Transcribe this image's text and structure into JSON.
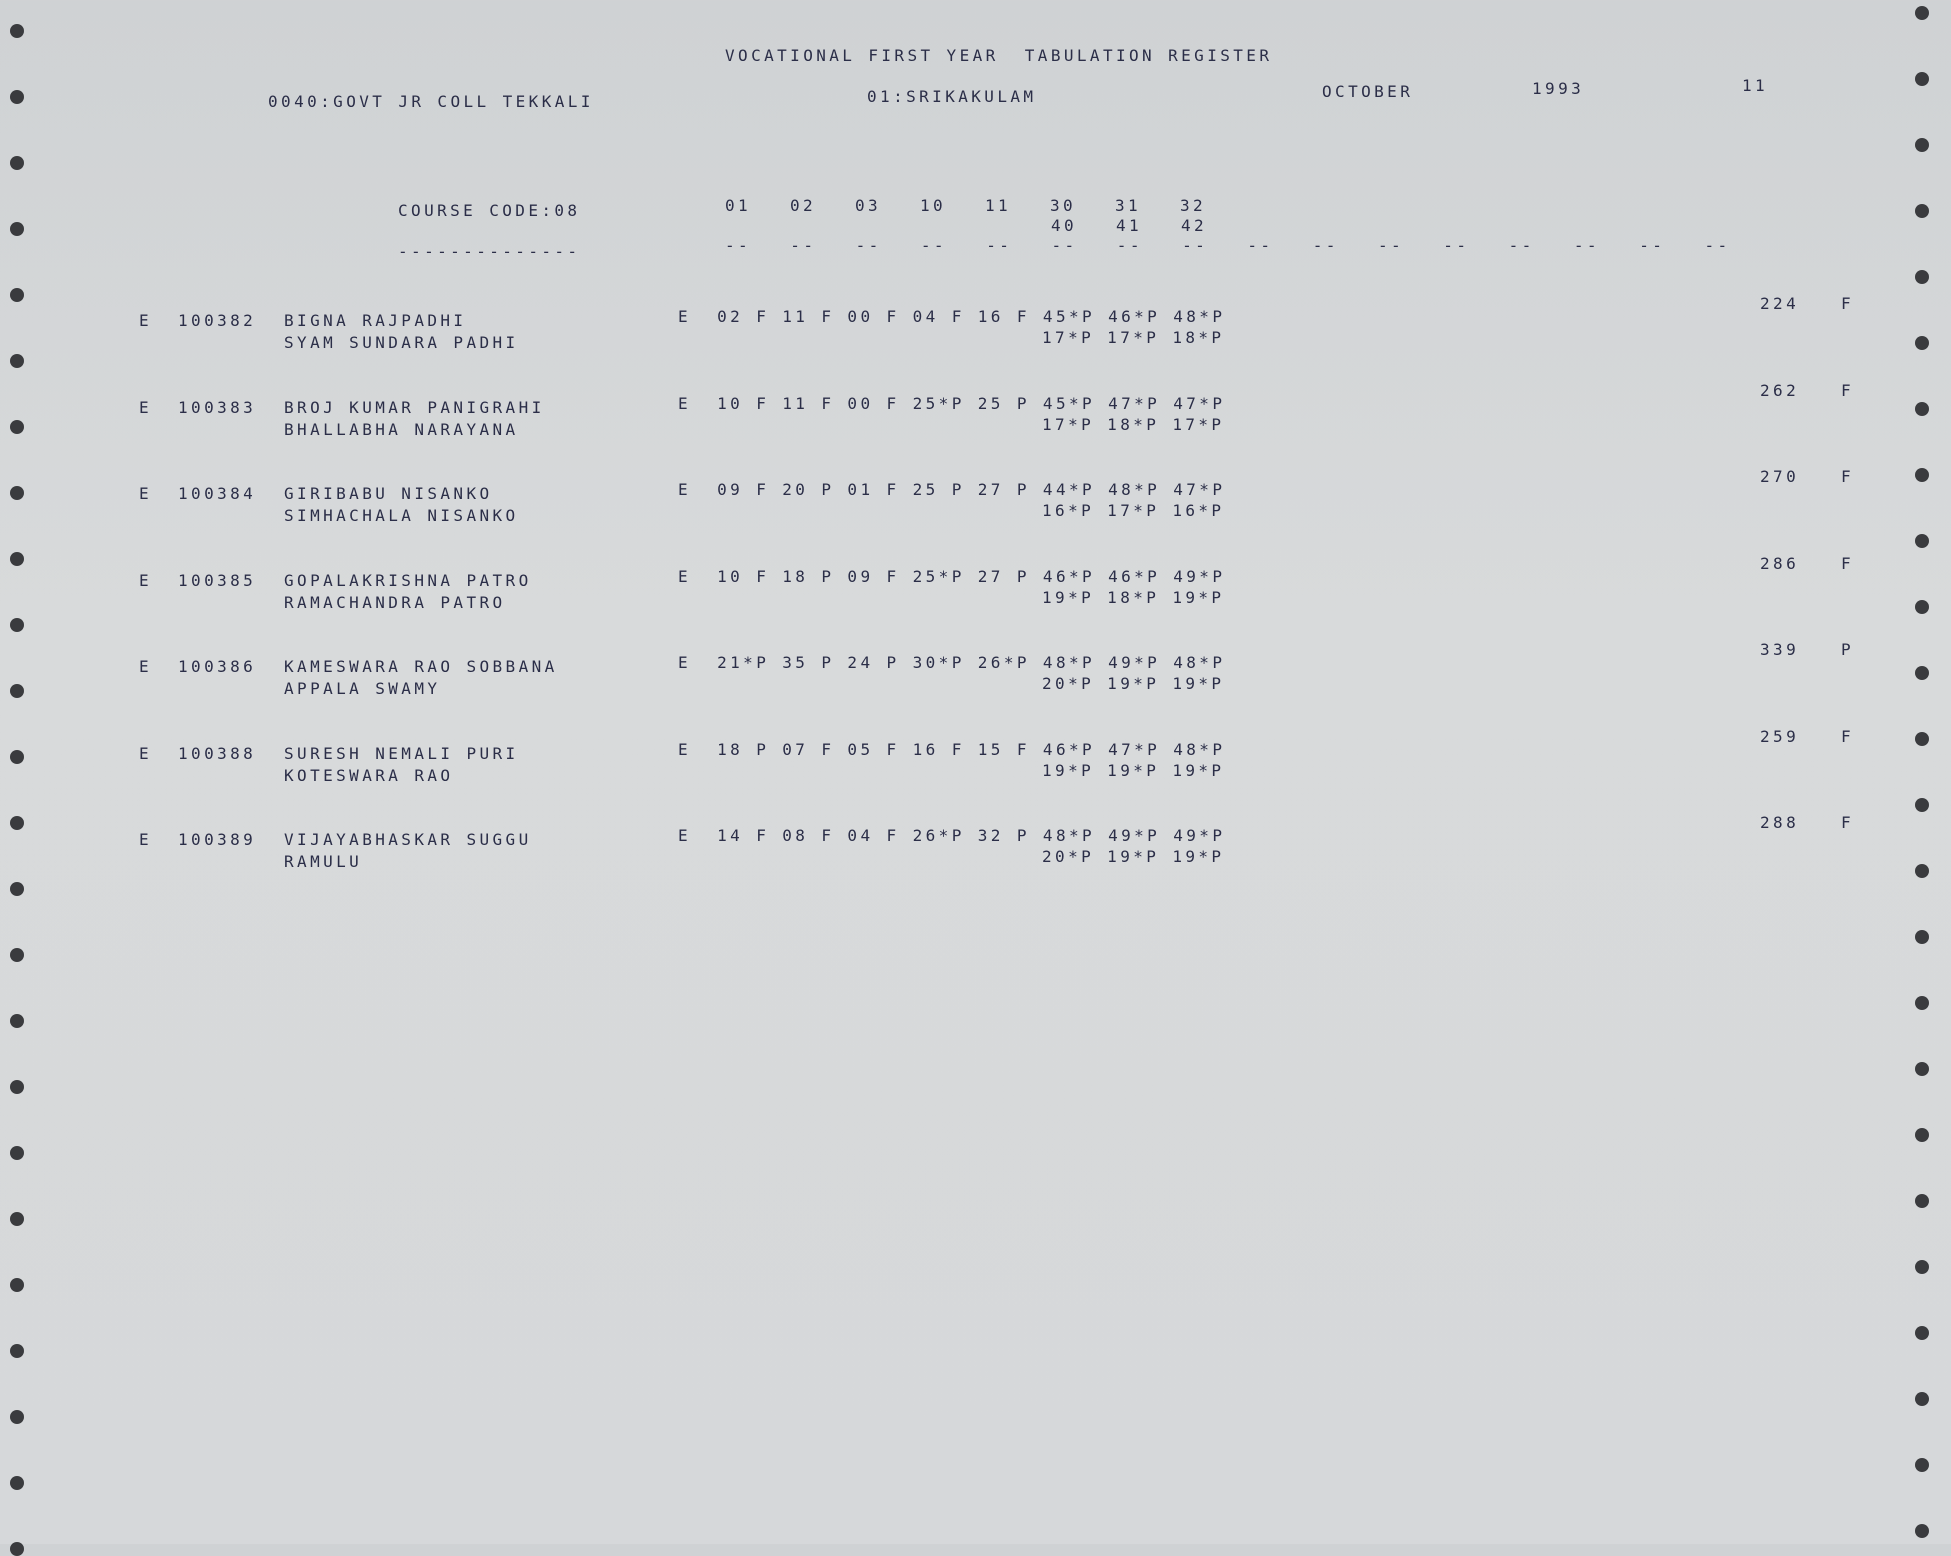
{
  "header": {
    "title": "VOCATIONAL FIRST YEAR  TABULATION REGISTER",
    "college": "0040:GOVT JR COLL TEKKALI",
    "district": "01:SRIKAKULAM",
    "month": "OCTOBER",
    "year": "1993",
    "page": "11"
  },
  "columns": {
    "course_code": "COURSE CODE:08",
    "course_underline": "--------------",
    "subject_codes_row1": [
      "01",
      "02",
      "03",
      "10",
      "11",
      "30",
      "31",
      "32"
    ],
    "subject_codes_row2": [
      "40",
      "41",
      "42"
    ],
    "dash_separators": [
      "--",
      "--",
      "--",
      "--",
      "--",
      "--",
      "--",
      "--",
      "--",
      "--",
      "--",
      "--",
      "--",
      "--",
      "--",
      "--"
    ]
  },
  "rows": [
    {
      "medium": "E",
      "roll": "100382",
      "name": "BIGNA RAJPADHI",
      "father": "SYAM SUNDARA PADHI",
      "marks1": "E  02 F 11 F 00 F 04 F 16 F 45*P 46*P 48*P",
      "marks2": "17*P 17*P 18*P",
      "total": "224",
      "result": "F"
    },
    {
      "medium": "E",
      "roll": "100383",
      "name": "BROJ KUMAR PANIGRAHI",
      "father": "BHALLABHA NARAYANA",
      "marks1": "E  10 F 11 F 00 F 25*P 25 P 45*P 47*P 47*P",
      "marks2": "17*P 18*P 17*P",
      "total": "262",
      "result": "F"
    },
    {
      "medium": "E",
      "roll": "100384",
      "name": "GIRIBABU NISANKO",
      "father": "SIMHACHALA NISANKO",
      "marks1": "E  09 F 20 P 01 F 25 P 27 P 44*P 48*P 47*P",
      "marks2": "16*P 17*P 16*P",
      "total": "270",
      "result": "F"
    },
    {
      "medium": "E",
      "roll": "100385",
      "name": "GOPALAKRISHNA PATRO",
      "father": "RAMACHANDRA PATRO",
      "marks1": "E  10 F 18 P 09 F 25*P 27 P 46*P 46*P 49*P",
      "marks2": "19*P 18*P 19*P",
      "total": "286",
      "result": "F"
    },
    {
      "medium": "E",
      "roll": "100386",
      "name": "KAMESWARA RAO SOBBANA",
      "father": "APPALA SWAMY",
      "marks1": "E  21*P 35 P 24 P 30*P 26*P 48*P 49*P 48*P",
      "marks2": "20*P 19*P 19*P",
      "total": "339",
      "result": "P"
    },
    {
      "medium": "E",
      "roll": "100388",
      "name": "SURESH NEMALI PURI",
      "father": "KOTESWARA RAO",
      "marks1": "E  18 P 07 F 05 F 16 F 15 F 46*P 47*P 48*P",
      "marks2": "19*P 19*P 19*P",
      "total": "259",
      "result": "F"
    },
    {
      "medium": "E",
      "roll": "100389",
      "name": "VIJAYABHASKAR SUGGU",
      "father": "RAMULU",
      "marks1": "E  14 F 08 F 04 F 26*P 32 P 48*P 49*P 49*P",
      "marks2": "20*P 19*P 19*P",
      "total": "288",
      "result": "F"
    }
  ],
  "colors": {
    "paper": "#d6d8da",
    "ink": "#2b2e48"
  }
}
